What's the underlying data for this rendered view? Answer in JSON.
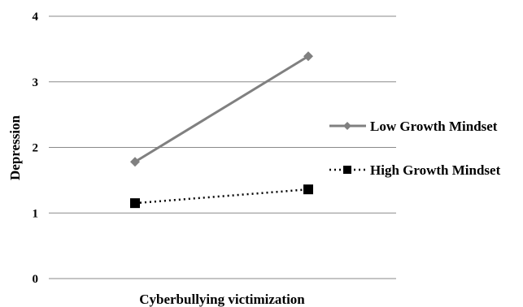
{
  "chart_data": {
    "type": "line",
    "categories": [
      "",
      ""
    ],
    "xlabel": "Cyberbullying victimization",
    "ylabel": "Depression",
    "ylim": [
      0,
      4
    ],
    "yticks": [
      0,
      1,
      2,
      3,
      4
    ],
    "grid": "horizontal",
    "legend_position": "right",
    "series": [
      {
        "name": "Low Growth Mindset",
        "values": [
          1.78,
          3.39
        ],
        "color": "#808080",
        "line_style": "solid",
        "marker": "diamond"
      },
      {
        "name": "High Growth Mindset",
        "values": [
          1.15,
          1.36
        ],
        "color": "#000000",
        "line_style": "dotted",
        "marker": "square"
      }
    ]
  }
}
